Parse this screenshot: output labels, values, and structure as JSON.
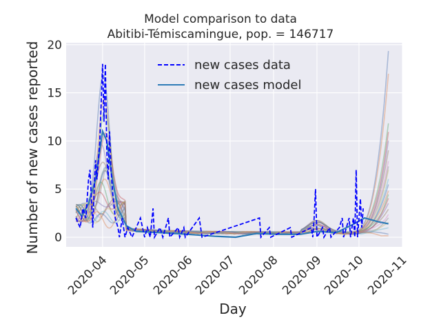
{
  "chart_data": {
    "type": "line",
    "title": "Model comparison to data",
    "subtitle": "Abitibi-Témiscamingue, pop. = 146717",
    "xlabel": "Day",
    "ylabel": "Number of new cases reported",
    "x_tick_labels": [
      "2020-04",
      "2020-05",
      "2020-06",
      "2020-07",
      "2020-08",
      "2020-09",
      "2020-10",
      "2020-11"
    ],
    "y_tick_labels": [
      "0",
      "5",
      "10",
      "15",
      "20"
    ],
    "y_ticks": [
      0,
      5,
      10,
      15,
      20
    ],
    "xlim": [
      "2020-03-06",
      "2020-11-01"
    ],
    "ylim": [
      -1,
      20.2
    ],
    "grid": true,
    "legend_position": "upper-center",
    "series": [
      {
        "name": "new cases data",
        "style": "dashed",
        "color": "#0000ff",
        "points": [
          [
            "2020-03-13",
            2
          ],
          [
            "2020-03-16",
            1
          ],
          [
            "2020-03-18",
            3
          ],
          [
            "2020-03-20",
            2
          ],
          [
            "2020-03-22",
            6
          ],
          [
            "2020-03-23",
            7
          ],
          [
            "2020-03-24",
            4
          ],
          [
            "2020-03-25",
            1
          ],
          [
            "2020-03-26",
            5
          ],
          [
            "2020-03-27",
            8
          ],
          [
            "2020-03-28",
            6
          ],
          [
            "2020-03-30",
            10
          ],
          [
            "2020-04-01",
            18
          ],
          [
            "2020-04-02",
            12
          ],
          [
            "2020-04-03",
            18
          ],
          [
            "2020-04-04",
            9
          ],
          [
            "2020-04-05",
            6
          ],
          [
            "2020-04-06",
            11
          ],
          [
            "2020-04-07",
            7
          ],
          [
            "2020-04-08",
            5
          ],
          [
            "2020-04-10",
            2
          ],
          [
            "2020-04-12",
            1
          ],
          [
            "2020-04-13",
            0
          ],
          [
            "2020-04-15",
            2
          ],
          [
            "2020-04-17",
            0
          ],
          [
            "2020-04-19",
            1
          ],
          [
            "2020-04-22",
            0
          ],
          [
            "2020-04-28",
            2
          ],
          [
            "2020-05-01",
            0
          ],
          [
            "2020-05-03",
            1
          ],
          [
            "2020-05-05",
            0
          ],
          [
            "2020-05-07",
            3
          ],
          [
            "2020-05-08",
            0
          ],
          [
            "2020-05-12",
            1
          ],
          [
            "2020-05-14",
            0
          ],
          [
            "2020-05-18",
            2
          ],
          [
            "2020-05-19",
            0
          ],
          [
            "2020-05-25",
            1
          ],
          [
            "2020-05-26",
            0
          ],
          [
            "2020-05-29",
            1
          ],
          [
            "2020-05-30",
            0
          ],
          [
            "2020-06-09",
            2
          ],
          [
            "2020-06-11",
            0
          ],
          [
            "2020-07-22",
            2
          ],
          [
            "2020-07-23",
            0
          ],
          [
            "2020-07-29",
            1
          ],
          [
            "2020-07-30",
            0
          ],
          [
            "2020-08-13",
            1
          ],
          [
            "2020-08-14",
            0
          ],
          [
            "2020-08-28",
            1
          ],
          [
            "2020-08-29",
            0
          ],
          [
            "2020-08-30",
            2
          ],
          [
            "2020-08-31",
            5
          ],
          [
            "2020-09-01",
            0
          ],
          [
            "2020-09-05",
            1
          ],
          [
            "2020-09-06",
            0
          ],
          [
            "2020-09-10",
            1
          ],
          [
            "2020-09-11",
            0
          ],
          [
            "2020-09-17",
            1
          ],
          [
            "2020-09-19",
            2
          ],
          [
            "2020-09-20",
            0
          ],
          [
            "2020-09-22",
            1
          ],
          [
            "2020-09-24",
            2
          ],
          [
            "2020-09-25",
            0
          ],
          [
            "2020-09-27",
            2
          ],
          [
            "2020-09-28",
            0
          ],
          [
            "2020-09-29",
            7
          ],
          [
            "2020-09-30",
            0
          ],
          [
            "2020-10-01",
            2
          ],
          [
            "2020-10-02",
            4
          ],
          [
            "2020-10-03",
            1
          ],
          [
            "2020-10-04",
            3
          ]
        ]
      },
      {
        "name": "new cases model",
        "style": "solid",
        "color": "#2d7bb6",
        "points": [
          [
            "2020-03-13",
            3
          ],
          [
            "2020-03-17",
            2.2
          ],
          [
            "2020-03-22",
            3.5
          ],
          [
            "2020-03-27",
            6
          ],
          [
            "2020-04-01",
            11
          ],
          [
            "2020-04-04",
            10
          ],
          [
            "2020-04-08",
            6
          ],
          [
            "2020-04-12",
            3
          ],
          [
            "2020-04-18",
            1.2
          ],
          [
            "2020-04-25",
            0.6
          ],
          [
            "2020-05-10",
            0.5
          ],
          [
            "2020-06-01",
            0.3
          ],
          [
            "2020-06-20",
            0.1
          ],
          [
            "2020-07-05",
            0
          ],
          [
            "2020-07-20",
            0.4
          ],
          [
            "2020-08-05",
            0.3
          ],
          [
            "2020-08-20",
            0.3
          ],
          [
            "2020-09-01",
            0.6
          ],
          [
            "2020-09-15",
            0.5
          ],
          [
            "2020-09-25",
            1.2
          ],
          [
            "2020-10-05",
            2
          ],
          [
            "2020-10-15",
            1.6
          ],
          [
            "2020-10-22",
            1.4
          ]
        ]
      }
    ],
    "ensemble_colors": [
      "#4c72b0",
      "#dd8452",
      "#55a868",
      "#c44e52",
      "#8172b3",
      "#937860",
      "#da8bc3",
      "#8c8c8c",
      "#ccb974",
      "#64b5cd"
    ],
    "ensemble_peaks": [
      16,
      13,
      12,
      10.5,
      9,
      8,
      7.5,
      7,
      6.5,
      6,
      5.5,
      5,
      4.5,
      4,
      3.5,
      3,
      2.5,
      2,
      1.5,
      1.2,
      1,
      0.8
    ],
    "ensemble_end_values": [
      19.3,
      17,
      12,
      11,
      10,
      9,
      8,
      7.5,
      7,
      6,
      5.5,
      5,
      4.5,
      4,
      3.5,
      3,
      2.5,
      2,
      1.5,
      1,
      0.5,
      0.2
    ]
  }
}
